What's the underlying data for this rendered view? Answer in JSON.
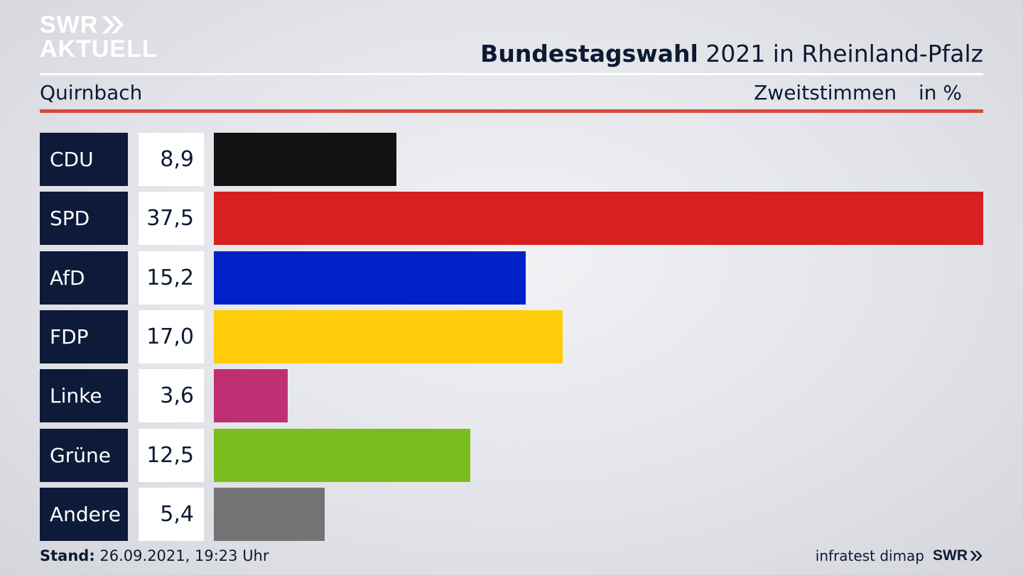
{
  "brand": {
    "line1": "SWR",
    "line2": "AKTUELL"
  },
  "header": {
    "title_bold": "Bundestagswahl",
    "title_rest": "2021 in Rheinland-Pfalz"
  },
  "subheader": {
    "location": "Quirnbach",
    "measure": "Zweitstimmen",
    "unit": "in %"
  },
  "colors": {
    "accent_rule": "#d74b3f",
    "label_bg": "#0d1a3a"
  },
  "chart_data": {
    "type": "bar",
    "orientation": "horizontal",
    "title": "Bundestagswahl 2021 in Rheinland-Pfalz",
    "xlim": [
      0,
      37.5
    ],
    "categories": [
      "CDU",
      "SPD",
      "AfD",
      "FDP",
      "Linke",
      "Grüne",
      "Andere"
    ],
    "values": [
      8.9,
      37.5,
      15.2,
      17.0,
      3.6,
      12.5,
      5.4
    ],
    "value_labels": [
      "8,9",
      "37,5",
      "15,2",
      "17,0",
      "3,6",
      "12,5",
      "5,4"
    ],
    "colors": [
      "#121212",
      "#d72020",
      "#0021c8",
      "#ffcc0a",
      "#bf2f73",
      "#79be1c",
      "#737373"
    ]
  },
  "footer": {
    "stand_label": "Stand:",
    "stand_value": "26.09.2021, 19:23 Uhr",
    "source": "infratest dimap",
    "brand": "SWR"
  }
}
